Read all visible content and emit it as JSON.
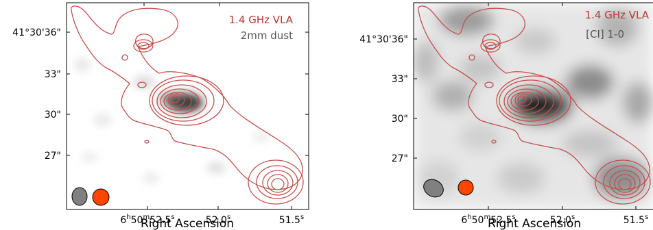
{
  "chart_data": [
    {
      "type": "heatmap",
      "description_of_overlay": "contours",
      "xlabel": "Right Ascension",
      "ylabel": "",
      "x_ticks": [
        {
          "sup_h": "h",
          "sup_m": "m",
          "sup_s": "s",
          "h": "6",
          "m": "50",
          "s": "52.5",
          "value": 52.5
        },
        {
          "sup_s": "s",
          "s": "52.0",
          "value": 52.0
        },
        {
          "sup_s": "s",
          "s": "51.5",
          "value": 51.5
        }
      ],
      "y_ticks": [
        {
          "label": "41°30'36\"",
          "value": 36
        },
        {
          "label": "33\"",
          "value": 33
        },
        {
          "label": "30\"",
          "value": 30
        },
        {
          "label": "27\"",
          "value": 27
        }
      ],
      "legend": [
        {
          "text": "1.4 GHz VLA",
          "color": "#b03a2e"
        },
        {
          "text": "2mm dust",
          "color": "#555555"
        }
      ],
      "beams": [
        {
          "fill": "#808080"
        },
        {
          "fill": "#ff4500"
        }
      ]
    },
    {
      "type": "heatmap",
      "xlabel": "Right Ascension",
      "ylabel": "",
      "x_ticks": [
        {
          "sup_h": "h",
          "sup_m": "m",
          "sup_s": "s",
          "h": "6",
          "m": "50",
          "s": "52.5",
          "value": 52.5
        },
        {
          "sup_s": "s",
          "s": "52.0",
          "value": 52.0
        },
        {
          "sup_s": "s",
          "s": "51.5",
          "value": 51.5
        }
      ],
      "y_ticks": [
        {
          "label": "41°30'36\"",
          "value": 36
        },
        {
          "label": "33\"",
          "value": 33
        },
        {
          "label": "30\"",
          "value": 30
        },
        {
          "label": "27\"",
          "value": 27
        }
      ],
      "legend": [
        {
          "text": "1.4 GHz VLA",
          "color": "#b03a2e"
        },
        {
          "text": "[CI] 1-0",
          "color": "#555555"
        }
      ],
      "beams": [
        {
          "fill": "#808080"
        },
        {
          "fill": "#ff4500"
        }
      ]
    }
  ]
}
